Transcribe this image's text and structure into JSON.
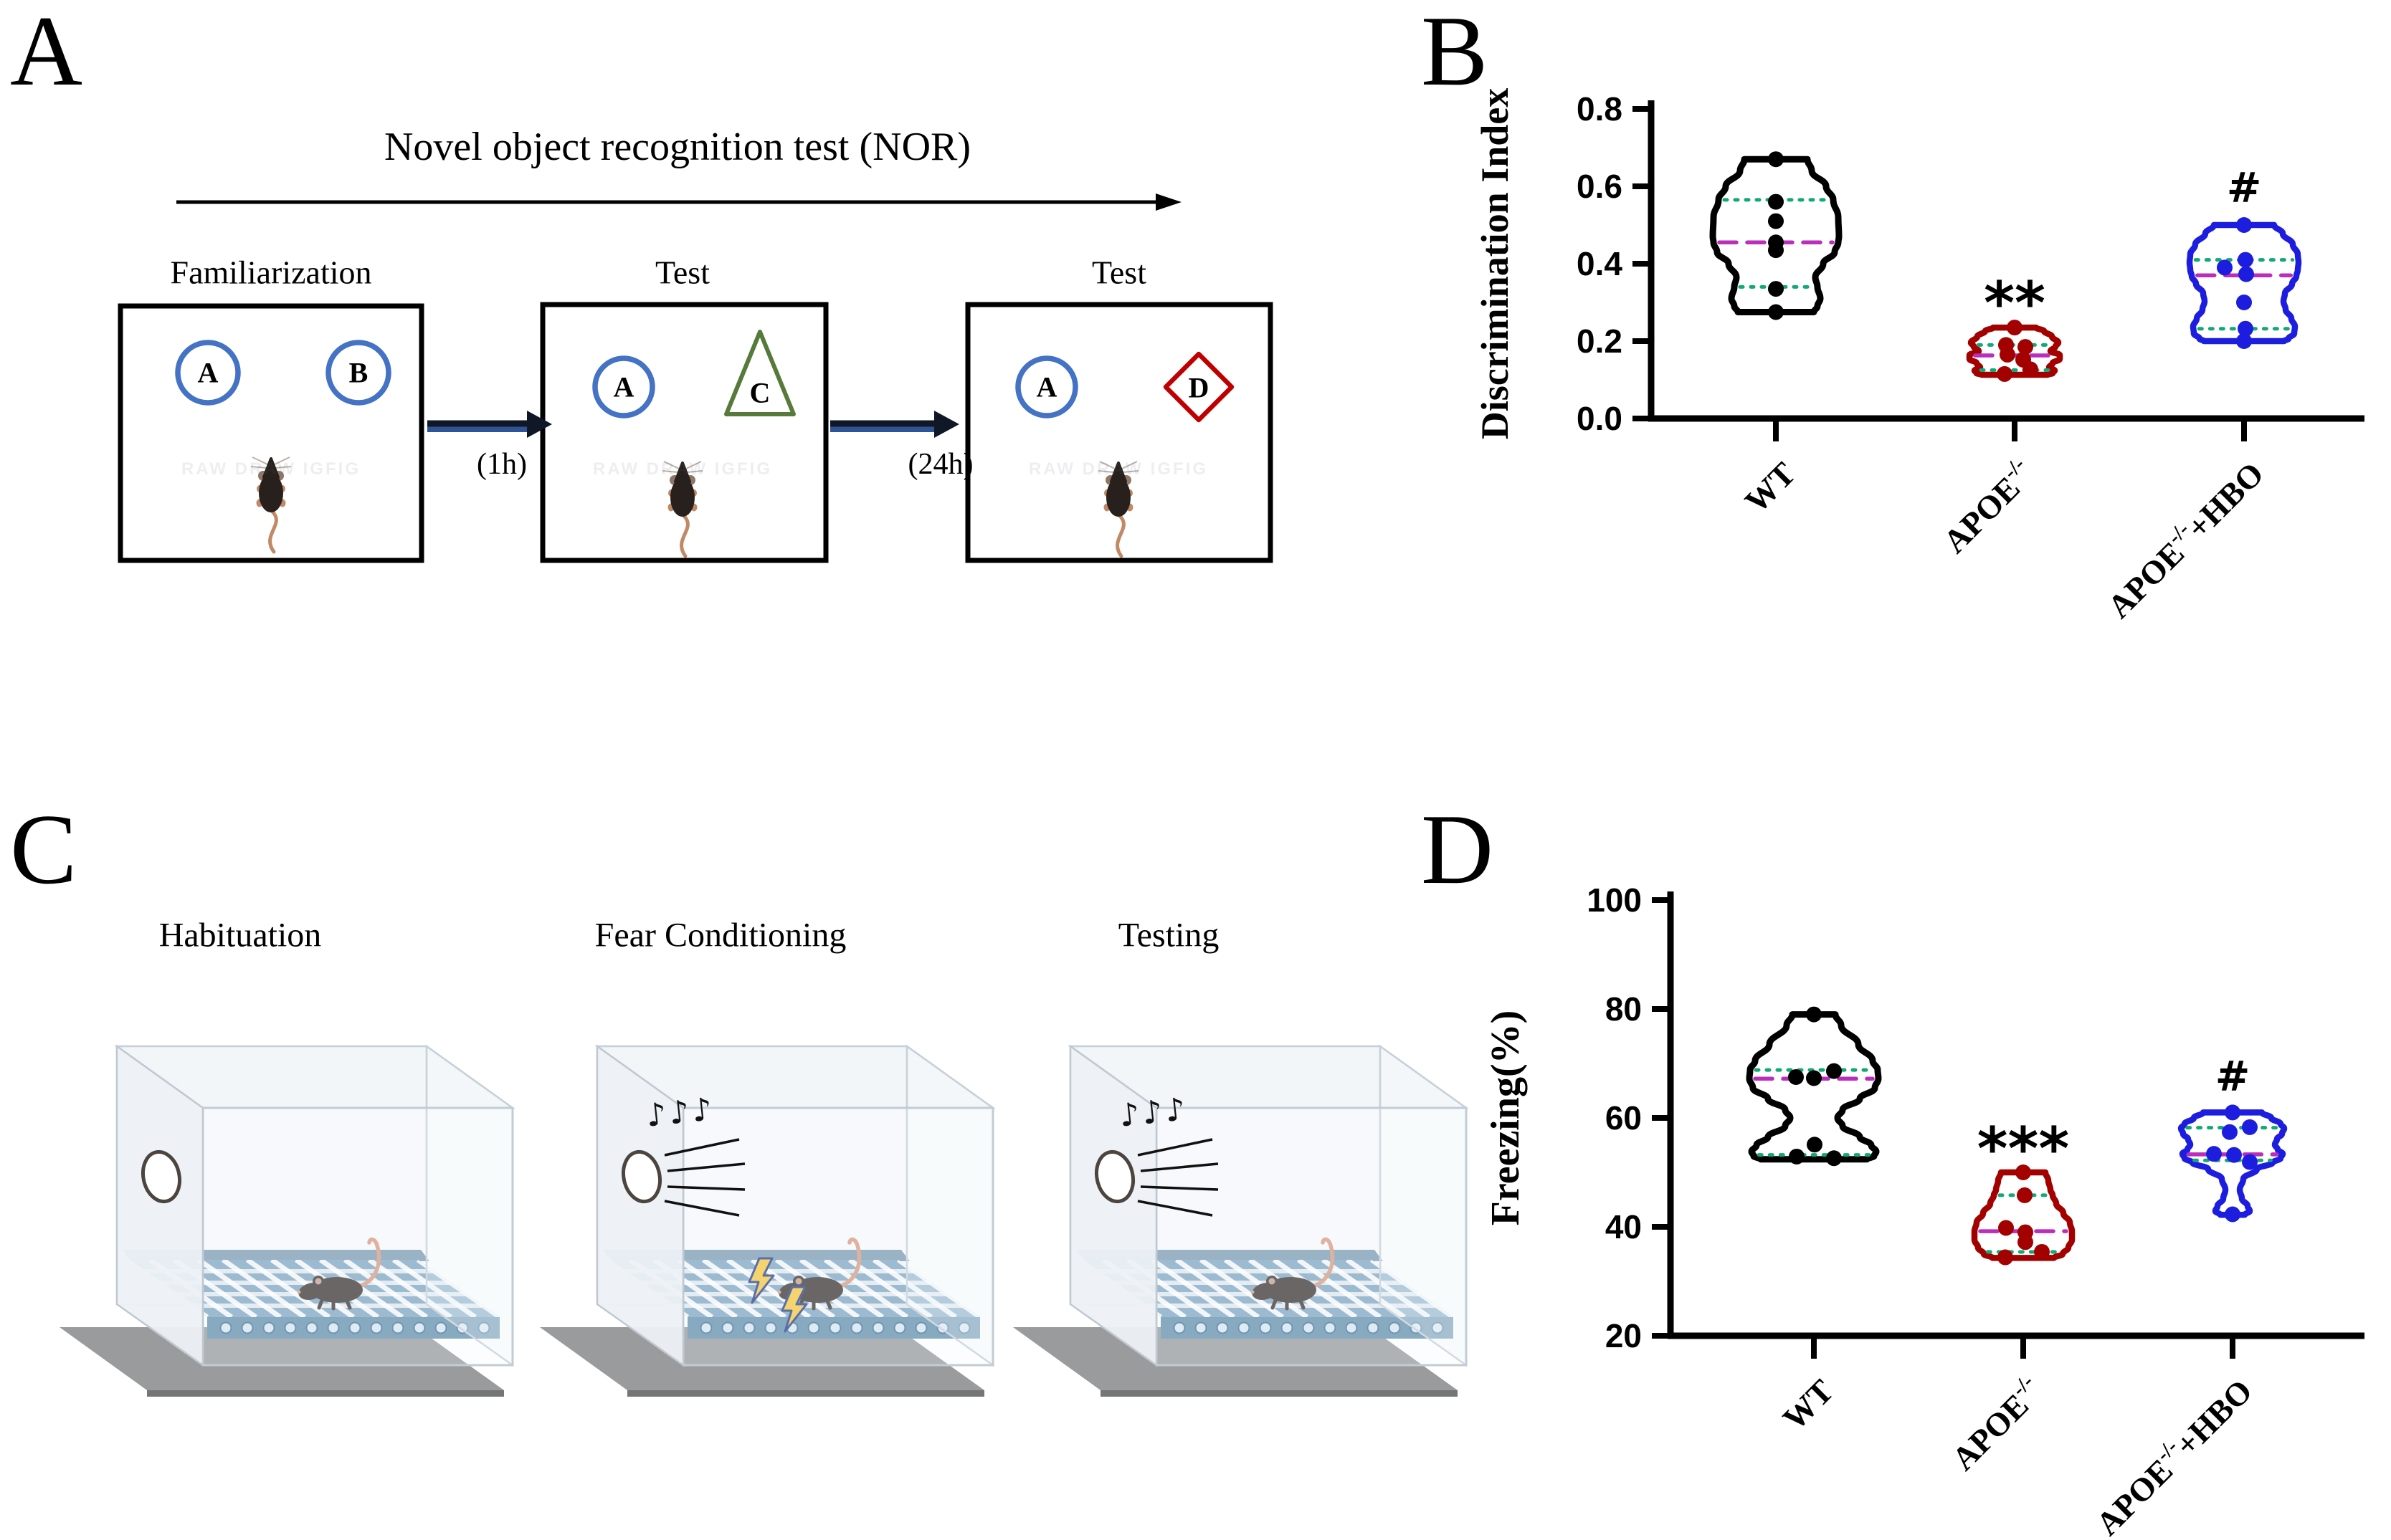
{
  "panels": {
    "A": {
      "label": "A",
      "title": "Novel object recognition test (NOR)",
      "stages": [
        "Familiarization",
        "Test",
        "Test"
      ],
      "intervals": [
        "(1h)",
        "(24h)"
      ],
      "objects": [
        [
          "A",
          "B"
        ],
        [
          "A",
          "C"
        ],
        [
          "A",
          "D"
        ]
      ],
      "watermark": "RAW DRAW IGFIG"
    },
    "B": {
      "label": "B",
      "ylabel": "Discrimination Index",
      "sig": [
        "",
        "**",
        "#"
      ]
    },
    "C": {
      "label": "C",
      "stages": [
        "Habituation",
        "Fear Conditioning",
        "Testing"
      ],
      "notes": "♪♪♪"
    },
    "D": {
      "label": "D",
      "ylabel": "Freezing(%)",
      "sig": [
        "",
        "***",
        "#"
      ]
    }
  },
  "groups": [
    {
      "base": "WT",
      "sup": "",
      "suffix": ""
    },
    {
      "base": "APOE",
      "sup": "-/-",
      "suffix": ""
    },
    {
      "base": "APOE",
      "sup": "-/-",
      "suffix": "+HBO"
    }
  ],
  "colors": {
    "wt": "#000000",
    "apoe": "#a30000",
    "hbo": "#1d1de0",
    "median": "#bb2dbb",
    "quartile": "#12a878",
    "object_blue": "#4472c4",
    "object_green": "#567a3a",
    "object_red": "#c00000",
    "arrow": "#101828",
    "arrow_accent": "#2f5496"
  },
  "chart_data": [
    {
      "type": "violin",
      "panel": "B",
      "ylabel": "Discrimination Index",
      "ylim": [
        0.0,
        0.8
      ],
      "yticks": [
        0.0,
        0.2,
        0.4,
        0.6,
        0.8
      ],
      "categories": [
        "WT",
        "APOE-/-",
        "APOE-/-+HBO"
      ],
      "series": [
        {
          "name": "WT",
          "points": [
            0.67,
            0.56,
            0.51,
            0.455,
            0.435,
            0.335,
            0.275
          ],
          "min": 0.275,
          "q1": 0.34,
          "median": 0.455,
          "q3": 0.565,
          "max": 0.67,
          "significance": ""
        },
        {
          "name": "APOE-/-",
          "points": [
            0.235,
            0.19,
            0.185,
            0.165,
            0.152,
            0.127,
            0.115
          ],
          "min": 0.113,
          "q1": 0.125,
          "median": 0.163,
          "q3": 0.19,
          "max": 0.235,
          "significance": "**"
        },
        {
          "name": "APOE-/-+HBO",
          "points": [
            0.5,
            0.41,
            0.39,
            0.373,
            0.3,
            0.232,
            0.2
          ],
          "min": 0.2,
          "q1": 0.232,
          "median": 0.37,
          "q3": 0.41,
          "max": 0.5,
          "significance": "#"
        }
      ]
    },
    {
      "type": "violin",
      "panel": "D",
      "ylabel": "Freezing(%)",
      "ylim": [
        20,
        100
      ],
      "yticks": [
        20,
        40,
        60,
        80,
        100
      ],
      "categories": [
        "WT",
        "APOE-/-",
        "APOE-/-+HBO"
      ],
      "series": [
        {
          "name": "WT",
          "points": [
            79,
            68.6,
            67.5,
            67.3,
            55.1,
            52.9,
            52.6
          ],
          "min": 52.4,
          "q1": 53.2,
          "median": 67.2,
          "q3": 68.8,
          "max": 79,
          "significance": ""
        },
        {
          "name": "APOE-/-",
          "points": [
            50,
            45.8,
            39.8,
            39,
            37.2,
            35.4,
            34.4
          ],
          "min": 34.3,
          "q1": 35.4,
          "median": 39.2,
          "q3": 45.8,
          "max": 50,
          "significance": "***"
        },
        {
          "name": "APOE-/-+HBO",
          "points": [
            61,
            58.3,
            57.4,
            53.4,
            53.2,
            51.9,
            42.3
          ],
          "min": 42.2,
          "q1": 52.2,
          "median": 53.3,
          "q3": 58.2,
          "max": 61,
          "significance": "#"
        }
      ]
    }
  ]
}
